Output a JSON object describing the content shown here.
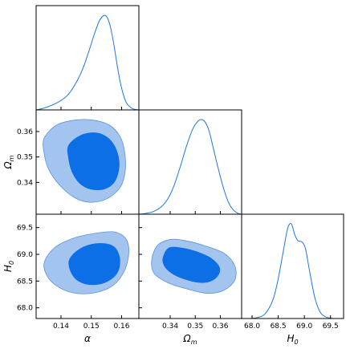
{
  "colors": {
    "line": "#1f77d9",
    "contour_outer": "#a4c4f0",
    "contour_inner": "#0d6fe6",
    "contour_edge": "#5a93d8",
    "frame": "#000000"
  },
  "chart_data": {
    "type": "triangle-corner",
    "parameters": [
      {
        "id": "alpha",
        "label": "α",
        "ticks": [
          "0.14",
          "0.15",
          "0.16"
        ],
        "tick_values": [
          0.14,
          0.15,
          0.16
        ],
        "range": [
          0.1318,
          0.1657
        ]
      },
      {
        "id": "omega_m",
        "label": "Ωm",
        "label_main": "Ω",
        "label_sub": "m",
        "ticks": [
          "0.34",
          "0.35",
          "0.36"
        ],
        "tick_values": [
          0.34,
          0.35,
          0.36
        ],
        "range": [
          0.3275,
          0.3685
        ]
      },
      {
        "id": "h0",
        "label": "H0",
        "label_main": "H",
        "label_sub": "0",
        "ticks": [
          "68.0",
          "68.5",
          "69.0",
          "69.5"
        ],
        "tick_values": [
          68.0,
          68.5,
          69.0,
          69.5
        ],
        "range": [
          67.8,
          69.75
        ]
      }
    ],
    "marginals": [
      {
        "param": "alpha",
        "x": [
          0.1318,
          0.1345,
          0.137,
          0.1395,
          0.142,
          0.1445,
          0.147,
          0.149,
          0.151,
          0.1525,
          0.1535,
          0.1545,
          0.1555,
          0.1565,
          0.1575,
          0.1585,
          0.1595,
          0.1605,
          0.1615,
          0.1625,
          0.1635,
          0.1645,
          0.1657
        ],
        "y": [
          0.0,
          0.02,
          0.05,
          0.09,
          0.15,
          0.26,
          0.42,
          0.6,
          0.8,
          0.93,
          0.98,
          1.0,
          0.96,
          0.85,
          0.68,
          0.48,
          0.3,
          0.17,
          0.08,
          0.04,
          0.015,
          0.005,
          0.0
        ]
      },
      {
        "param": "omega_m",
        "x": [
          0.3275,
          0.3305,
          0.3335,
          0.3365,
          0.339,
          0.3415,
          0.344,
          0.3465,
          0.349,
          0.351,
          0.3525,
          0.354,
          0.3555,
          0.357,
          0.359,
          0.361,
          0.363,
          0.365,
          0.367,
          0.3685
        ],
        "y": [
          0.0,
          0.01,
          0.03,
          0.08,
          0.16,
          0.3,
          0.5,
          0.72,
          0.9,
          0.98,
          1.0,
          0.97,
          0.88,
          0.72,
          0.5,
          0.3,
          0.14,
          0.05,
          0.01,
          0.0
        ]
      },
      {
        "param": "h0",
        "x": [
          67.8,
          67.95,
          68.1,
          68.25,
          68.4,
          68.5,
          68.6,
          68.68,
          68.75,
          68.82,
          68.88,
          68.95,
          69.02,
          69.1,
          69.2,
          69.3,
          69.4,
          69.55,
          69.75
        ],
        "y": [
          0.0,
          0.0,
          0.01,
          0.05,
          0.2,
          0.42,
          0.72,
          0.95,
          1.0,
          0.88,
          0.82,
          0.81,
          0.74,
          0.5,
          0.22,
          0.07,
          0.02,
          0.0,
          0.0
        ]
      }
    ],
    "contours": [
      {
        "x": "alpha",
        "y": "omega_m",
        "outer": [
          [
            0.1345,
            0.3575
          ],
          [
            0.1385,
            0.3625
          ],
          [
            0.1445,
            0.3645
          ],
          [
            0.1505,
            0.3645
          ],
          [
            0.156,
            0.3625
          ],
          [
            0.1595,
            0.358
          ],
          [
            0.161,
            0.352
          ],
          [
            0.1612,
            0.3445
          ],
          [
            0.1595,
            0.338
          ],
          [
            0.155,
            0.3335
          ],
          [
            0.1495,
            0.3322
          ],
          [
            0.1445,
            0.334
          ],
          [
            0.1395,
            0.339
          ],
          [
            0.1358,
            0.3455
          ],
          [
            0.1343,
            0.3525
          ]
        ],
        "inner": [
          [
            0.1425,
            0.3545
          ],
          [
            0.1465,
            0.3585
          ],
          [
            0.1515,
            0.3595
          ],
          [
            0.1555,
            0.3575
          ],
          [
            0.1582,
            0.353
          ],
          [
            0.1592,
            0.3465
          ],
          [
            0.1578,
            0.3405
          ],
          [
            0.1545,
            0.3375
          ],
          [
            0.15,
            0.3373
          ],
          [
            0.1463,
            0.3395
          ],
          [
            0.1437,
            0.344
          ],
          [
            0.1425,
            0.3495
          ]
        ]
      },
      {
        "x": "alpha",
        "y": "h0",
        "outer": [
          [
            0.1345,
            68.85
          ],
          [
            0.1378,
            69.12
          ],
          [
            0.144,
            69.3
          ],
          [
            0.151,
            69.39
          ],
          [
            0.1575,
            69.42
          ],
          [
            0.1613,
            69.3
          ],
          [
            0.1624,
            69.05
          ],
          [
            0.161,
            68.7
          ],
          [
            0.1572,
            68.42
          ],
          [
            0.151,
            68.28
          ],
          [
            0.144,
            68.28
          ],
          [
            0.1383,
            68.42
          ],
          [
            0.1352,
            68.62
          ]
        ],
        "inner": [
          [
            0.1428,
            68.9
          ],
          [
            0.1462,
            69.1
          ],
          [
            0.1515,
            69.2
          ],
          [
            0.157,
            69.16
          ],
          [
            0.1593,
            68.95
          ],
          [
            0.1588,
            68.68
          ],
          [
            0.1555,
            68.5
          ],
          [
            0.1505,
            68.43
          ],
          [
            0.1458,
            68.5
          ],
          [
            0.1432,
            68.68
          ]
        ]
      },
      {
        "x": "omega_m",
        "y": "h0",
        "outer": [
          [
            0.3327,
            68.92
          ],
          [
            0.3352,
            69.18
          ],
          [
            0.3405,
            69.28
          ],
          [
            0.3455,
            69.26
          ],
          [
            0.3525,
            69.18
          ],
          [
            0.3615,
            69.02
          ],
          [
            0.3658,
            68.78
          ],
          [
            0.3658,
            68.52
          ],
          [
            0.3615,
            68.33
          ],
          [
            0.355,
            68.27
          ],
          [
            0.347,
            68.35
          ],
          [
            0.339,
            68.47
          ],
          [
            0.3335,
            68.65
          ]
        ],
        "inner": [
          [
            0.3372,
            68.95
          ],
          [
            0.3395,
            69.12
          ],
          [
            0.3445,
            69.12
          ],
          [
            0.3505,
            69.05
          ],
          [
            0.3565,
            68.92
          ],
          [
            0.3598,
            68.73
          ],
          [
            0.358,
            68.55
          ],
          [
            0.353,
            68.47
          ],
          [
            0.3462,
            68.53
          ],
          [
            0.3405,
            68.65
          ],
          [
            0.3375,
            68.8
          ]
        ]
      }
    ]
  }
}
